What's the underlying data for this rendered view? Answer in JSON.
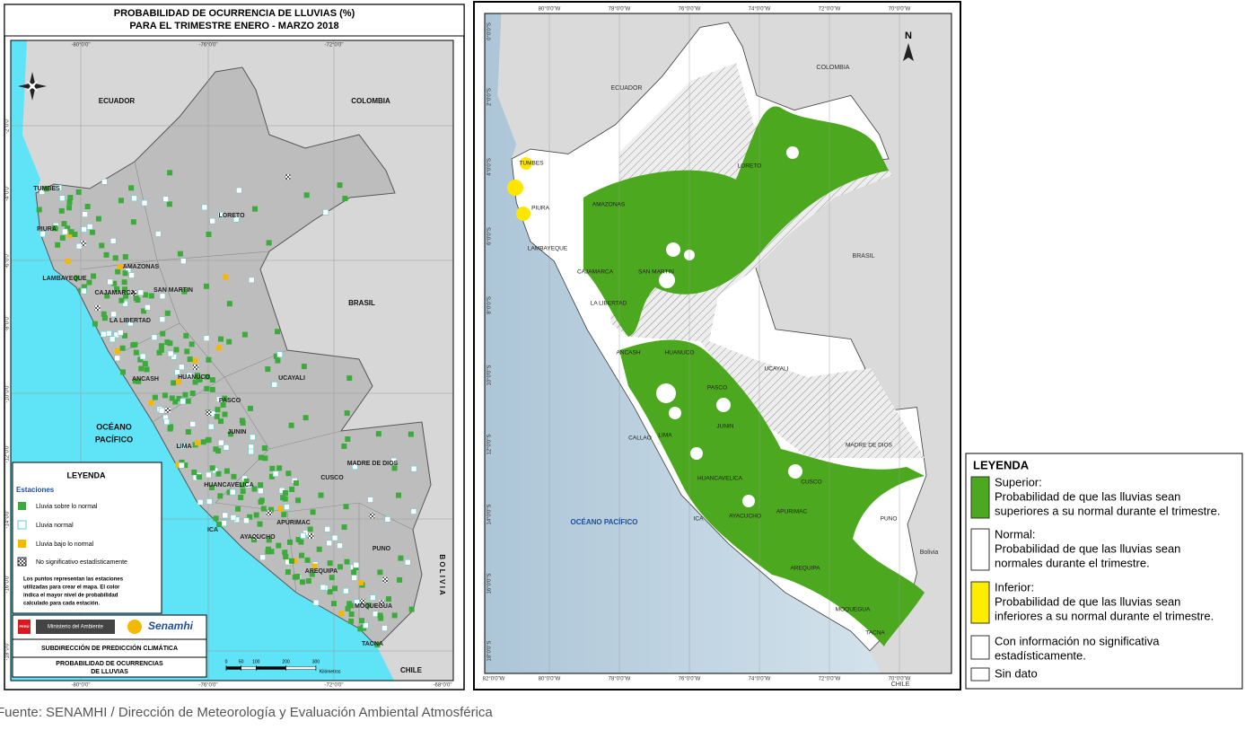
{
  "left_map": {
    "title": [
      "PROBABILIDAD DE OCURRENCIA DE LLUVIAS (%)",
      "PARA EL TRIMESTRE ENERO - MARZO 2018"
    ],
    "top_lon_labels": [
      "-80°0'0\"",
      "-76°0'0\"",
      "-72°0'0\""
    ],
    "bottom_lon_labels": [
      "-80°0'0\"",
      "-76°0'0\"",
      "-72°0'0\"",
      "-68°0'0\""
    ],
    "lat_labels": [
      "-2°0'0\"",
      "-4°0'0\"",
      "-6°0'0\"",
      "-8°0'0\"",
      "-10°0'0\"",
      "-12°0'0\"",
      "-14°0'0\"",
      "-16°0'0\"",
      "-18°0'0\""
    ],
    "countries": [
      "ECUADOR",
      "COLOMBIA",
      "BRASIL",
      "B O L I V I A",
      "CHILE"
    ],
    "ocean": [
      "OCÉANO",
      "PACÍFICO"
    ],
    "regions": [
      "LORETO",
      "AMAZONAS",
      "SAN MARTIN",
      "CAJAMARCA",
      "LAMBAYEQUE",
      "PIURA",
      "TUMBES",
      "LA LIBERTAD",
      "ANCASH",
      "HUANUCO",
      "PASCO",
      "UCAYALI",
      "JUNIN",
      "LIMA",
      "HUANCAVELICA",
      "ICA",
      "AYACUCHO",
      "APURIMAC",
      "CUSCO",
      "MADRE DE DIOS",
      "PUNO",
      "AREQUIPA",
      "MOQUEGUA",
      "TACNA"
    ],
    "legend": {
      "title": "LEYENDA",
      "subtitle": "Estaciones",
      "items": [
        "Lluvia sobre lo normal",
        "Lluvia normal",
        "Lluvia bajo lo normal",
        "No significativo estadísticamente"
      ],
      "note": [
        "Los puntos representan las estaciones",
        "utilizadas para crear el mapa. El color",
        "indica el mayor nivel de probabilidad",
        "calculado para cada estación."
      ]
    },
    "institution": {
      "peru": "PERÚ",
      "ministry": "Ministerio del Ambiente",
      "logo": "Senamhi",
      "office": "SUBDIRECCIÓN DE PREDICCIÓN CLIMÁTICA",
      "product": [
        "PROBABILIDAD DE OCURRENCIAS",
        "DE LLUVIAS"
      ]
    },
    "scale": {
      "ticks": [
        0,
        50,
        100,
        200,
        300
      ],
      "unit": "Kilómetros"
    }
  },
  "right_map": {
    "top_lon_labels": [
      "80°0'0\"W",
      "78°0'0\"W",
      "76°0'0\"W",
      "74°0'0\"W",
      "72°0'0\"W",
      "70°0'0\"W"
    ],
    "bottom_lon_labels": [
      "82°0'0\"W",
      "80°0'0\"W",
      "78°0'0\"W",
      "76°0'0\"W",
      "74°0'0\"W",
      "72°0'0\"W",
      "70°0'0\"W"
    ],
    "lat_labels": [
      "0°0'0\"S",
      "2°0'0\"S",
      "4°0'0\"S",
      "6°0'0\"S",
      "8°0'0\"S",
      "10°0'0\"S",
      "12°0'0\"S",
      "14°0'0\"S",
      "16°0'0\"S",
      "18°0'0\"S"
    ],
    "countries": [
      "ECUADOR",
      "COLOMBIA",
      "BRASIL",
      "Bolivia",
      "CHILE"
    ],
    "ocean": "OCÉANO PACÍFICO",
    "north": "N",
    "regions": [
      "TUMBES",
      "PIURA",
      "LAMBAYEQUE",
      "AMAZONAS",
      "CAJAMARCA",
      "SAN MARTIN",
      "LA LIBERTAD",
      "LORETO",
      "ANCASH",
      "HUANUCO",
      "PASCO",
      "UCAYALI",
      "CALLAO",
      "LIMA",
      "JUNIN",
      "HUANCAVELICA",
      "ICA",
      "AYACUCHO",
      "APURIMAC",
      "CUSCO",
      "MADRE DE DIOS",
      "PUNO",
      "AREQUIPA",
      "MOQUEGUA",
      "TACNA"
    ]
  },
  "legend": {
    "title": "LEYENDA",
    "items": [
      {
        "name": "Superior:",
        "description": [
          "Probabilidad de que las lluvias sean",
          "superiores a su normal durante el trimestre."
        ]
      },
      {
        "name": "Normal:",
        "description": [
          "Probabilidad de que las lluvias sean",
          "normales durante el trimestre."
        ]
      },
      {
        "name": "Inferior:",
        "description": [
          "Probabilidad de que las lluvias sean",
          "inferiores a su normal durante el trimestre."
        ]
      },
      {
        "name": "Con información no significativa",
        "description": [
          "estadísticamente."
        ]
      },
      {
        "name": "Sin dato",
        "description": []
      }
    ]
  },
  "source": "Fuente: SENAMHI / Dirección de Meteorología y Evaluación Ambiental Atmosférica"
}
